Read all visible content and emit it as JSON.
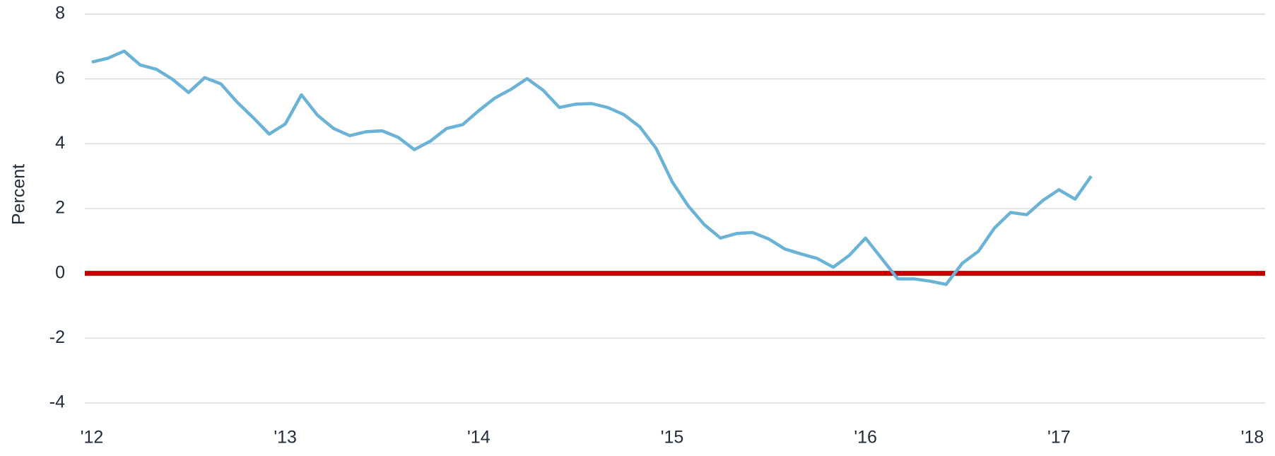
{
  "chart_data": {
    "type": "line",
    "y_label": "Percent",
    "categories": [
      "'12",
      null,
      null,
      null,
      null,
      null,
      null,
      null,
      null,
      null,
      null,
      null,
      "'13",
      null,
      null,
      null,
      null,
      null,
      null,
      null,
      null,
      null,
      null,
      null,
      "'14",
      null,
      null,
      null,
      null,
      null,
      null,
      null,
      null,
      null,
      null,
      null,
      "'15",
      null,
      null,
      null,
      null,
      null,
      null,
      null,
      null,
      null,
      null,
      null,
      "'16",
      null,
      null,
      null,
      null,
      null,
      null,
      null,
      null,
      null,
      null,
      null,
      "'17",
      null,
      null,
      null,
      null,
      null,
      null,
      null,
      null,
      null,
      null,
      null,
      "'18"
    ],
    "series": [
      {
        "color": "#6ab2d6",
        "values": [
          6.52,
          6.64,
          6.86,
          6.43,
          6.3,
          5.99,
          5.58,
          6.04,
          5.85,
          5.29,
          4.81,
          4.3,
          4.61,
          5.51,
          4.88,
          4.47,
          4.25,
          4.37,
          4.4,
          4.2,
          3.82,
          4.08,
          4.47,
          4.59,
          5.02,
          5.41,
          5.68,
          6.01,
          5.65,
          5.12,
          5.22,
          5.24,
          5.12,
          4.9,
          4.52,
          3.86,
          2.83,
          2.08,
          1.5,
          1.09,
          1.23,
          1.26,
          1.06,
          0.75,
          0.6,
          0.46,
          0.19,
          0.56,
          1.09,
          0.46,
          -0.17,
          -0.17,
          -0.24,
          -0.34,
          0.31,
          0.68,
          1.4,
          1.88,
          1.81,
          2.25,
          2.58,
          2.29,
          3.0,
          null,
          null,
          null,
          null,
          null,
          null,
          null,
          null,
          null,
          null
        ]
      }
    ],
    "reference_line": {
      "value": 0,
      "color": "#c00000"
    },
    "ylim": [
      -4,
      8
    ],
    "yticks": [
      -4,
      -2,
      0,
      2,
      4,
      6,
      8
    ],
    "grid": true
  }
}
